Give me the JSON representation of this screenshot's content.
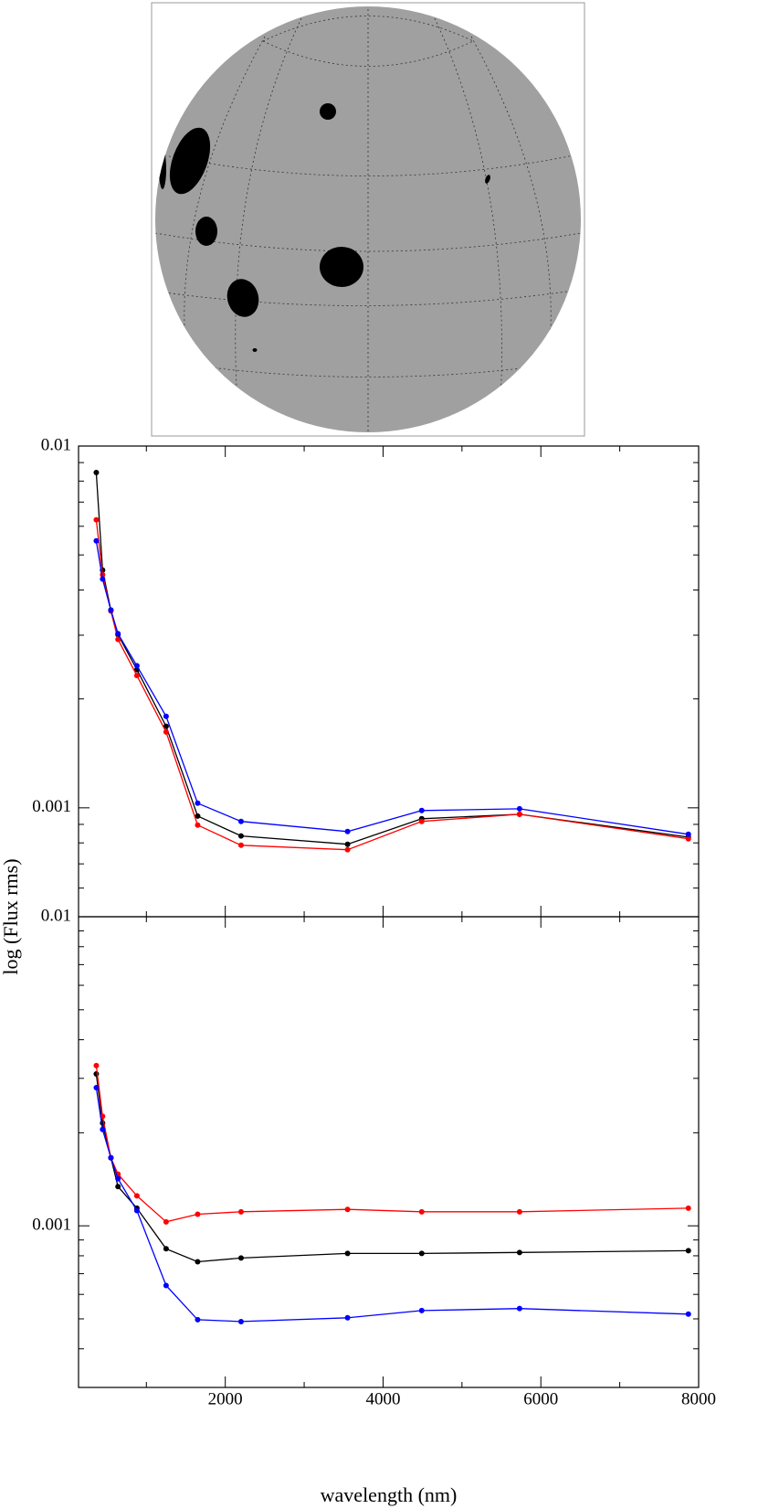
{
  "chart_data": [
    {
      "type": "line",
      "log_y": true,
      "x": [
        365,
        445,
        550,
        640,
        880,
        1250,
        1650,
        2200,
        3550,
        4490,
        5730,
        7870
      ],
      "series": [
        {
          "color": "#000000",
          "values": [
            0.00845,
            0.00454,
            0.00352,
            0.00301,
            0.00241,
            0.00168,
            0.000949,
            0.000836,
            0.000793,
            0.000933,
            0.00096,
            0.00083
          ]
        },
        {
          "color": "#ff0000",
          "values": [
            0.00625,
            0.00441,
            0.0035,
            0.00292,
            0.00232,
            0.00162,
            0.000896,
            0.000788,
            0.000766,
            0.000917,
            0.00096,
            0.000821
          ]
        },
        {
          "color": "#0000ff",
          "values": [
            0.00547,
            0.00429,
            0.00352,
            0.00303,
            0.00247,
            0.00179,
            0.00103,
            0.000917,
            0.00086,
            0.000983,
            0.000994,
            0.000845
          ]
        }
      ],
      "xlim": [
        140,
        8000
      ],
      "xticks": [
        2000,
        4000,
        6000,
        8000
      ],
      "xticks_minor": [
        1000,
        3000,
        5000,
        7000
      ],
      "ylim": [
        0.0005,
        0.01
      ],
      "yticks": [
        0.001,
        0.01
      ],
      "yticks_minor": [
        0.0006,
        0.0007,
        0.0008,
        0.0009,
        0.002,
        0.003,
        0.004,
        0.005,
        0.006,
        0.007,
        0.008,
        0.009
      ],
      "ylabel": "log (Flux rms)"
    },
    {
      "type": "line",
      "log_y": true,
      "x": [
        365,
        445,
        550,
        640,
        880,
        1250,
        1650,
        2200,
        3550,
        4490,
        5730,
        7870
      ],
      "series": [
        {
          "color": "#000000",
          "values": [
            0.0031,
            0.00215,
            0.00166,
            0.00134,
            0.00114,
            0.000843,
            0.000765,
            0.000787,
            0.000814,
            0.000814,
            0.00082,
            0.000831
          ]
        },
        {
          "color": "#ff0000",
          "values": [
            0.0033,
            0.00226,
            0.00166,
            0.00147,
            0.00125,
            0.00103,
            0.00109,
            0.00111,
            0.00113,
            0.00111,
            0.00111,
            0.00114
          ]
        },
        {
          "color": "#0000ff",
          "values": [
            0.0028,
            0.00205,
            0.00166,
            0.00142,
            0.00112,
            0.000641,
            0.000497,
            0.00049,
            0.000504,
            0.000532,
            0.00054,
            0.000518
          ]
        }
      ],
      "xlim": [
        140,
        8000
      ],
      "xticks": [
        2000,
        4000,
        6000,
        8000
      ],
      "xticks_minor": [
        1000,
        3000,
        5000,
        7000
      ],
      "ylim": [
        0.0003,
        0.01
      ],
      "yticks": [
        0.001,
        0.01
      ],
      "yticks_minor": [
        0.0004,
        0.0005,
        0.0006,
        0.0007,
        0.0008,
        0.0009,
        0.002,
        0.003,
        0.004,
        0.005,
        0.006,
        0.007,
        0.008,
        0.009
      ],
      "xlabel": "wavelength (nm)"
    }
  ]
}
